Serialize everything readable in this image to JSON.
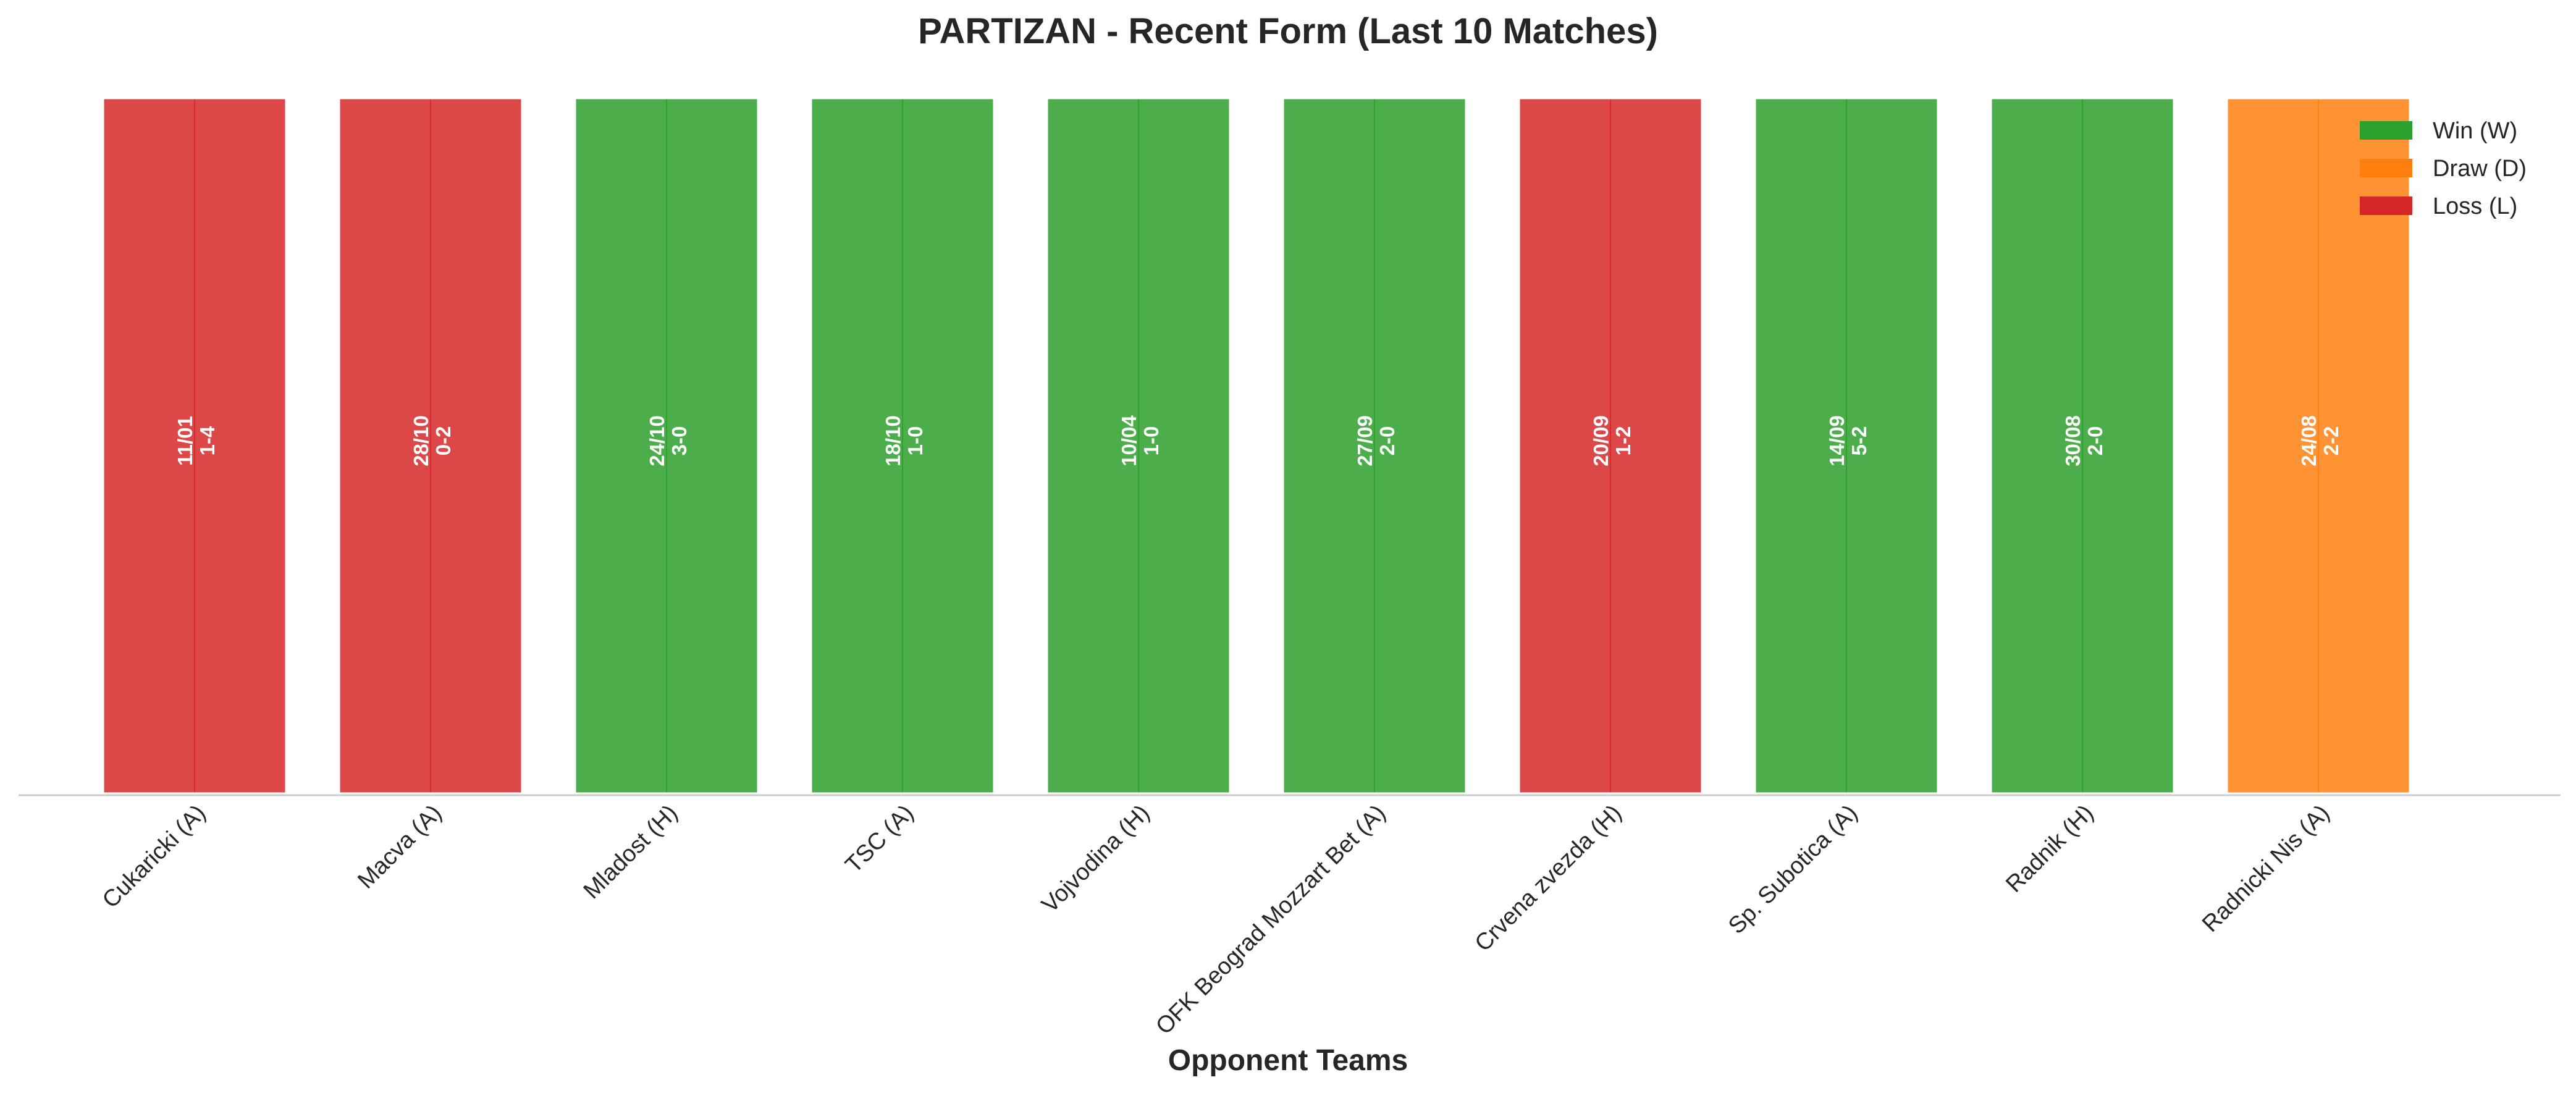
{
  "chart_data": {
    "type": "bar",
    "title": "PARTIZAN - Recent Form (Last 10 Matches)",
    "xlabel": "Opponent Teams",
    "ylabel": "",
    "ylim": [
      0,
      1
    ],
    "grid": false,
    "legend_position": "top-right",
    "categories": [
      "Cukaricki (A)",
      "Macva (A)",
      "Mladost (H)",
      "TSC (A)",
      "Vojvodina (H)",
      "OFK Beograd Mozzart Bet (A)",
      "Crvena zvezda (H)",
      "Sp. Subotica (A)",
      "Radnik (H)",
      "Radnicki Nis (A)"
    ],
    "values": [
      1,
      1,
      1,
      1,
      1,
      1,
      1,
      1,
      1,
      1
    ],
    "results": [
      "L",
      "L",
      "W",
      "W",
      "W",
      "W",
      "L",
      "W",
      "W",
      "D"
    ],
    "dates": [
      "11/01",
      "28/10",
      "24/10",
      "18/10",
      "10/04",
      "27/09",
      "20/09",
      "14/09",
      "30/08",
      "24/08"
    ],
    "scores": [
      "1-4",
      "0-2",
      "3-0",
      "1-0",
      "1-0",
      "2-0",
      "1-2",
      "5-2",
      "2-0",
      "2-2"
    ],
    "legend": [
      {
        "key": "W",
        "label": "Win (W)",
        "color": "#2ca02c"
      },
      {
        "key": "D",
        "label": "Draw (D)",
        "color": "#ff7f0e"
      },
      {
        "key": "L",
        "label": "Loss (L)",
        "color": "#d62728"
      }
    ],
    "colors": {
      "W": "#2ca02c",
      "D": "#ff7f0e",
      "L": "#d62728"
    }
  }
}
